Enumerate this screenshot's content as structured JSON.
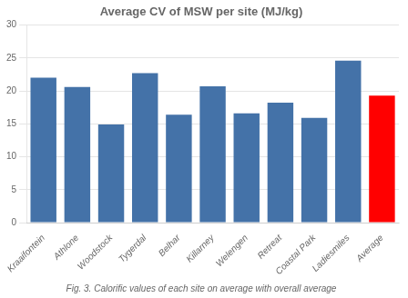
{
  "chart_data": {
    "type": "bar",
    "title": "Average CV of MSW per site (MJ/kg)",
    "categories": [
      "Kraaifontein",
      "Athlone",
      "Woodstock",
      "Tygerdal",
      "Belhar",
      "Killarney",
      "Welengen",
      "Retreat",
      "Coastal Park",
      "Ladiesmiles",
      "Average"
    ],
    "values": [
      22.0,
      20.6,
      14.9,
      22.7,
      16.4,
      20.7,
      16.6,
      18.2,
      15.9,
      24.6,
      19.3
    ],
    "colors": [
      "#4472a8",
      "#4472a8",
      "#4472a8",
      "#4472a8",
      "#4472a8",
      "#4472a8",
      "#4472a8",
      "#4472a8",
      "#4472a8",
      "#4472a8",
      "#ff0000"
    ],
    "ylim": [
      0,
      30
    ],
    "yticks": [
      0,
      5,
      10,
      15,
      20,
      25,
      30
    ],
    "grid": true,
    "caption": "Fig. 3. Calorific values of each site on average with overall average"
  }
}
